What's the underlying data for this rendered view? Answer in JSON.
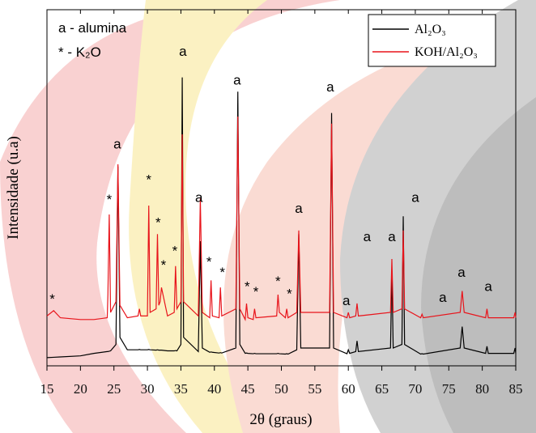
{
  "chart_data": {
    "type": "line",
    "xlabel": "2θ (graus)",
    "ylabel": "Intensidade (u.a)",
    "xlim": [
      15,
      85
    ],
    "xticks": [
      15,
      20,
      25,
      30,
      35,
      40,
      45,
      50,
      55,
      60,
      65,
      70,
      75,
      80,
      85
    ],
    "ylim": [
      0,
      100
    ],
    "legend": "upper right",
    "x": [
      15,
      16,
      17,
      20,
      22,
      24,
      24.1,
      24.3,
      24.5,
      25.3,
      25.6,
      25.9,
      27,
      28.6,
      28.8,
      29,
      30,
      30.2,
      30.4,
      31.3,
      31.5,
      31.7,
      31.9,
      32.1,
      33,
      34,
      34.2,
      34.4,
      35,
      35.2,
      35.4,
      37.6,
      37.9,
      38.2,
      39.3,
      39.5,
      39.7,
      40.7,
      40.9,
      41.1,
      43.2,
      43.5,
      43.8,
      44.6,
      44.8,
      45,
      45.8,
      46,
      46.2,
      49.3,
      49.5,
      49.7,
      50.6,
      50.8,
      51,
      52.3,
      52.6,
      52.9,
      57.2,
      57.5,
      57.8,
      59.8,
      60,
      60.2,
      61.1,
      61.3,
      61.5,
      66.3,
      66.5,
      66.7,
      68,
      68.2,
      68.4,
      70.8,
      71,
      71.2,
      76.7,
      77,
      77.3,
      80.5,
      80.7,
      80.9,
      84.7,
      84.9,
      85
    ],
    "series": [
      {
        "name": "Al₂O₃",
        "color": "#000000",
        "values": [
          2.3,
          2.4,
          2.5,
          2.8,
          3.5,
          4.0,
          4.0,
          4.1,
          4.2,
          6,
          56,
          8,
          4.5,
          4.5,
          4.6,
          4.5,
          4.5,
          4.6,
          4.5,
          4.4,
          4.5,
          4.4,
          4.4,
          4.4,
          4.2,
          4.2,
          4.3,
          4.2,
          6,
          81,
          8,
          4,
          35,
          5,
          3.8,
          3.9,
          3.8,
          3.6,
          3.7,
          3.6,
          5,
          77,
          6,
          3.5,
          3.6,
          3.5,
          3.4,
          3.5,
          3.4,
          3.4,
          3.5,
          3.4,
          3.3,
          3.4,
          3.3,
          4.5,
          37,
          5,
          5,
          71,
          5,
          3.4,
          4.5,
          3.5,
          4,
          7,
          4,
          5,
          27,
          5,
          6,
          42,
          6,
          3.3,
          3.4,
          3.3,
          5,
          11,
          5,
          3.5,
          5.5,
          3.5,
          3.5,
          5,
          3.5
        ]
      },
      {
        "name": "KOH/Al₂O₃",
        "color": "#e8141b",
        "values": [
          14,
          15.5,
          13.5,
          13,
          13,
          13.5,
          20,
          42.5,
          15,
          18,
          56.6,
          17,
          13.5,
          14,
          16,
          14,
          14,
          45,
          15,
          16,
          37,
          17,
          18,
          22,
          14,
          15,
          28,
          16,
          18,
          65,
          18,
          14,
          47,
          15,
          13.5,
          24,
          14,
          13.5,
          22,
          14,
          16,
          70,
          16,
          13,
          17.5,
          13.5,
          13,
          16,
          13.5,
          14,
          20,
          15,
          13.5,
          16,
          13.5,
          15,
          38,
          15,
          15,
          68,
          15,
          13.5,
          15,
          13.5,
          14,
          17.5,
          14,
          15,
          30,
          15,
          16,
          38,
          16,
          13.5,
          14.5,
          13.5,
          15,
          21,
          15,
          13.5,
          16,
          13.5,
          13.5,
          15,
          13.5
        ]
      }
    ],
    "notes": [
      "a - alumina",
      "* - K₂O"
    ],
    "annotations": [
      {
        "text": "*",
        "x": 15.8,
        "y": 17.5
      },
      {
        "text": "*",
        "x": 24.3,
        "y": 45.5
      },
      {
        "text": "a",
        "x": 25.5,
        "y": 61
      },
      {
        "text": "*",
        "x": 30.2,
        "y": 51
      },
      {
        "text": "*",
        "x": 31.6,
        "y": 39
      },
      {
        "text": "*",
        "x": 32.4,
        "y": 27
      },
      {
        "text": "*",
        "x": 34.1,
        "y": 31
      },
      {
        "text": "a",
        "x": 35.3,
        "y": 87
      },
      {
        "text": "a",
        "x": 37.7,
        "y": 46
      },
      {
        "text": "*",
        "x": 39.2,
        "y": 28
      },
      {
        "text": "*",
        "x": 41.2,
        "y": 25
      },
      {
        "text": "a",
        "x": 43.4,
        "y": 79
      },
      {
        "text": "*",
        "x": 44.9,
        "y": 21
      },
      {
        "text": "*",
        "x": 46.2,
        "y": 19.5
      },
      {
        "text": "*",
        "x": 49.5,
        "y": 22.5
      },
      {
        "text": "*",
        "x": 51.2,
        "y": 19
      },
      {
        "text": "a",
        "x": 52.6,
        "y": 43
      },
      {
        "text": "a",
        "x": 57.3,
        "y": 77
      },
      {
        "text": "a",
        "x": 59.7,
        "y": 17
      },
      {
        "text": "a",
        "x": 62.8,
        "y": 35
      },
      {
        "text": "a",
        "x": 66.5,
        "y": 35
      },
      {
        "text": "a",
        "x": 70,
        "y": 46
      },
      {
        "text": "a",
        "x": 74.1,
        "y": 18
      },
      {
        "text": "a",
        "x": 76.9,
        "y": 25
      },
      {
        "text": "a",
        "x": 80.9,
        "y": 21
      }
    ]
  }
}
